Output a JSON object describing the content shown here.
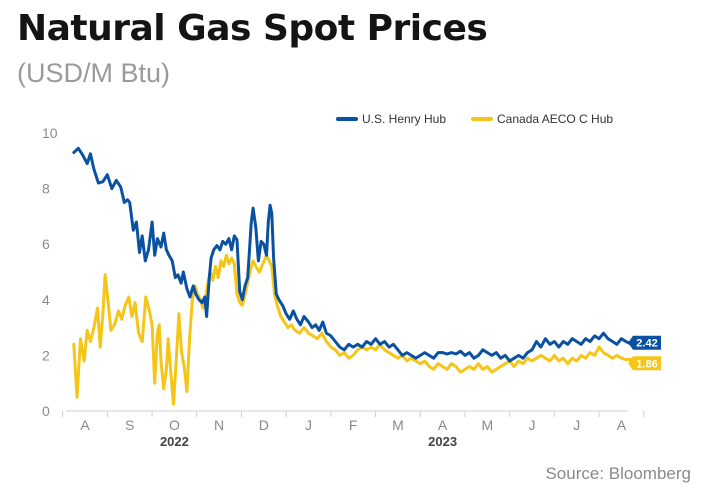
{
  "header": {
    "title": "Natural Gas Spot Prices",
    "subtitle": "(USD/M Btu)"
  },
  "footer": {
    "source": "Source: Bloomberg"
  },
  "colors": {
    "henry": "#0a52a1",
    "aeco": "#f5c518",
    "axis": "#cfcfcf",
    "label_text": "#ffffff",
    "aeco_label_text": "#ffffff"
  },
  "chart_data": {
    "type": "line",
    "x_unit": "months (0 = Aug 1, 2022)",
    "ylim": [
      0,
      10
    ],
    "yticks": [
      0,
      2,
      4,
      6,
      8,
      10
    ],
    "month_ticks": [
      "A",
      "S",
      "O",
      "N",
      "D",
      "J",
      "F",
      "M",
      "A",
      "M",
      "J",
      "J",
      "A"
    ],
    "year_labels": [
      {
        "label": "2022",
        "month_index": 2
      },
      {
        "label": "2023",
        "month_index": 8
      }
    ],
    "legend_position": "top-right",
    "grid": false,
    "end_labels": {
      "henry": "2.42",
      "aeco": "1.86"
    },
    "series": [
      {
        "key": "henry",
        "name": "U.S. Henry Hub",
        "points": [
          [
            -0.25,
            9.3
          ],
          [
            -0.15,
            9.45
          ],
          [
            -0.05,
            9.2
          ],
          [
            0.05,
            8.9
          ],
          [
            0.12,
            9.25
          ],
          [
            0.2,
            8.7
          ],
          [
            0.3,
            8.2
          ],
          [
            0.4,
            8.25
          ],
          [
            0.5,
            8.5
          ],
          [
            0.6,
            8.0
          ],
          [
            0.7,
            8.3
          ],
          [
            0.8,
            8.05
          ],
          [
            0.88,
            7.5
          ],
          [
            0.95,
            7.6
          ],
          [
            1.0,
            7.5
          ],
          [
            1.08,
            6.5
          ],
          [
            1.15,
            6.8
          ],
          [
            1.22,
            5.7
          ],
          [
            1.28,
            6.3
          ],
          [
            1.35,
            5.4
          ],
          [
            1.42,
            5.8
          ],
          [
            1.5,
            6.8
          ],
          [
            1.56,
            5.6
          ],
          [
            1.62,
            6.2
          ],
          [
            1.7,
            5.9
          ],
          [
            1.76,
            6.4
          ],
          [
            1.82,
            5.8
          ],
          [
            1.88,
            5.6
          ],
          [
            1.95,
            5.4
          ],
          [
            2.02,
            4.8
          ],
          [
            2.08,
            4.9
          ],
          [
            2.15,
            4.6
          ],
          [
            2.2,
            5.0
          ],
          [
            2.28,
            4.4
          ],
          [
            2.35,
            4.1
          ],
          [
            2.42,
            4.5
          ],
          [
            2.48,
            4.2
          ],
          [
            2.55,
            4.0
          ],
          [
            2.62,
            3.9
          ],
          [
            2.68,
            4.1
          ],
          [
            2.72,
            3.4
          ],
          [
            2.78,
            4.8
          ],
          [
            2.82,
            5.5
          ],
          [
            2.88,
            5.8
          ],
          [
            2.95,
            5.95
          ],
          [
            3.02,
            5.8
          ],
          [
            3.08,
            6.1
          ],
          [
            3.15,
            6.0
          ],
          [
            3.22,
            6.2
          ],
          [
            3.28,
            5.8
          ],
          [
            3.34,
            6.3
          ],
          [
            3.4,
            6.15
          ],
          [
            3.46,
            4.3
          ],
          [
            3.52,
            4.0
          ],
          [
            3.58,
            4.5
          ],
          [
            3.64,
            4.8
          ],
          [
            3.68,
            5.8
          ],
          [
            3.72,
            6.8
          ],
          [
            3.76,
            7.3
          ],
          [
            3.82,
            6.6
          ],
          [
            3.88,
            5.4
          ],
          [
            3.94,
            6.1
          ],
          [
            4.0,
            6.0
          ],
          [
            4.06,
            5.6
          ],
          [
            4.1,
            6.8
          ],
          [
            4.14,
            7.4
          ],
          [
            4.18,
            7.1
          ],
          [
            4.22,
            5.5
          ],
          [
            4.28,
            4.2
          ],
          [
            4.34,
            4.0
          ],
          [
            4.42,
            3.8
          ],
          [
            4.5,
            3.5
          ],
          [
            4.58,
            3.3
          ],
          [
            4.66,
            3.6
          ],
          [
            4.74,
            3.3
          ],
          [
            4.82,
            3.1
          ],
          [
            4.9,
            3.4
          ],
          [
            5.0,
            3.2
          ],
          [
            5.08,
            3.0
          ],
          [
            5.16,
            3.1
          ],
          [
            5.24,
            2.9
          ],
          [
            5.32,
            3.2
          ],
          [
            5.4,
            2.8
          ],
          [
            5.5,
            2.7
          ],
          [
            5.6,
            2.5
          ],
          [
            5.7,
            2.3
          ],
          [
            5.8,
            2.2
          ],
          [
            5.9,
            2.4
          ],
          [
            6.0,
            2.3
          ],
          [
            6.1,
            2.4
          ],
          [
            6.2,
            2.3
          ],
          [
            6.3,
            2.5
          ],
          [
            6.4,
            2.4
          ],
          [
            6.5,
            2.6
          ],
          [
            6.6,
            2.4
          ],
          [
            6.7,
            2.5
          ],
          [
            6.8,
            2.3
          ],
          [
            6.9,
            2.4
          ],
          [
            7.0,
            2.2
          ],
          [
            7.1,
            2.0
          ],
          [
            7.2,
            2.1
          ],
          [
            7.3,
            2.0
          ],
          [
            7.4,
            1.9
          ],
          [
            7.5,
            2.0
          ],
          [
            7.6,
            2.1
          ],
          [
            7.7,
            2.0
          ],
          [
            7.8,
            1.9
          ],
          [
            7.9,
            2.1
          ],
          [
            8.0,
            2.1
          ],
          [
            8.1,
            2.05
          ],
          [
            8.2,
            2.1
          ],
          [
            8.3,
            2.05
          ],
          [
            8.4,
            2.15
          ],
          [
            8.5,
            2.0
          ],
          [
            8.6,
            2.1
          ],
          [
            8.7,
            1.9
          ],
          [
            8.8,
            2.0
          ],
          [
            8.9,
            2.2
          ],
          [
            9.0,
            2.1
          ],
          [
            9.1,
            2.0
          ],
          [
            9.2,
            2.1
          ],
          [
            9.3,
            1.9
          ],
          [
            9.4,
            2.0
          ],
          [
            9.5,
            1.8
          ],
          [
            9.6,
            1.9
          ],
          [
            9.7,
            2.0
          ],
          [
            9.8,
            1.9
          ],
          [
            9.9,
            2.1
          ],
          [
            10.0,
            2.2
          ],
          [
            10.1,
            2.5
          ],
          [
            10.2,
            2.3
          ],
          [
            10.3,
            2.6
          ],
          [
            10.4,
            2.4
          ],
          [
            10.5,
            2.5
          ],
          [
            10.6,
            2.3
          ],
          [
            10.7,
            2.5
          ],
          [
            10.8,
            2.4
          ],
          [
            10.9,
            2.6
          ],
          [
            11.0,
            2.5
          ],
          [
            11.1,
            2.4
          ],
          [
            11.2,
            2.6
          ],
          [
            11.3,
            2.5
          ],
          [
            11.4,
            2.7
          ],
          [
            11.5,
            2.6
          ],
          [
            11.6,
            2.8
          ],
          [
            11.7,
            2.6
          ],
          [
            11.8,
            2.5
          ],
          [
            11.9,
            2.4
          ],
          [
            12.0,
            2.6
          ],
          [
            12.1,
            2.5
          ],
          [
            12.2,
            2.42
          ]
        ]
      },
      {
        "key": "aeco",
        "name": "Canada AECO C Hub",
        "points": [
          [
            -0.25,
            2.4
          ],
          [
            -0.18,
            0.5
          ],
          [
            -0.1,
            2.6
          ],
          [
            -0.02,
            1.8
          ],
          [
            0.05,
            2.9
          ],
          [
            0.12,
            2.5
          ],
          [
            0.2,
            3.0
          ],
          [
            0.28,
            3.7
          ],
          [
            0.34,
            2.3
          ],
          [
            0.4,
            3.5
          ],
          [
            0.45,
            4.9
          ],
          [
            0.52,
            3.9
          ],
          [
            0.58,
            2.9
          ],
          [
            0.66,
            3.1
          ],
          [
            0.75,
            3.6
          ],
          [
            0.82,
            3.3
          ],
          [
            0.9,
            3.8
          ],
          [
            0.98,
            4.1
          ],
          [
            1.05,
            3.4
          ],
          [
            1.12,
            3.9
          ],
          [
            1.2,
            2.8
          ],
          [
            1.28,
            2.5
          ],
          [
            1.36,
            4.1
          ],
          [
            1.44,
            3.6
          ],
          [
            1.5,
            3.1
          ],
          [
            1.56,
            1.0
          ],
          [
            1.62,
            2.8
          ],
          [
            1.66,
            3.1
          ],
          [
            1.7,
            1.8
          ],
          [
            1.76,
            0.8
          ],
          [
            1.82,
            1.5
          ],
          [
            1.86,
            2.6
          ],
          [
            1.92,
            1.4
          ],
          [
            1.98,
            0.25
          ],
          [
            2.04,
            1.8
          ],
          [
            2.1,
            3.5
          ],
          [
            2.16,
            2.1
          ],
          [
            2.22,
            1.6
          ],
          [
            2.28,
            0.7
          ],
          [
            2.34,
            2.6
          ],
          [
            2.4,
            4.0
          ],
          [
            2.46,
            4.5
          ],
          [
            2.52,
            4.2
          ],
          [
            2.58,
            4.0
          ],
          [
            2.64,
            3.7
          ],
          [
            2.7,
            4.1
          ],
          [
            2.75,
            4.6
          ],
          [
            2.8,
            5.0
          ],
          [
            2.86,
            4.7
          ],
          [
            2.92,
            5.2
          ],
          [
            2.98,
            4.8
          ],
          [
            3.04,
            5.4
          ],
          [
            3.1,
            5.2
          ],
          [
            3.16,
            5.6
          ],
          [
            3.22,
            5.3
          ],
          [
            3.28,
            5.5
          ],
          [
            3.34,
            5.3
          ],
          [
            3.4,
            4.2
          ],
          [
            3.46,
            3.9
          ],
          [
            3.52,
            3.8
          ],
          [
            3.58,
            4.2
          ],
          [
            3.64,
            4.6
          ],
          [
            3.7,
            5.1
          ],
          [
            3.76,
            5.4
          ],
          [
            3.82,
            5.2
          ],
          [
            3.9,
            5.0
          ],
          [
            3.98,
            5.3
          ],
          [
            4.06,
            5.6
          ],
          [
            4.12,
            5.4
          ],
          [
            4.18,
            5.2
          ],
          [
            4.24,
            4.2
          ],
          [
            4.3,
            3.8
          ],
          [
            4.38,
            3.4
          ],
          [
            4.46,
            3.2
          ],
          [
            4.54,
            3.0
          ],
          [
            4.62,
            3.1
          ],
          [
            4.7,
            2.9
          ],
          [
            4.8,
            2.8
          ],
          [
            4.9,
            3.0
          ],
          [
            5.0,
            2.8
          ],
          [
            5.1,
            2.7
          ],
          [
            5.2,
            2.6
          ],
          [
            5.3,
            2.8
          ],
          [
            5.4,
            2.5
          ],
          [
            5.5,
            2.3
          ],
          [
            5.6,
            2.2
          ],
          [
            5.7,
            2.0
          ],
          [
            5.8,
            2.1
          ],
          [
            5.9,
            1.9
          ],
          [
            6.0,
            2.0
          ],
          [
            6.1,
            2.2
          ],
          [
            6.2,
            2.3
          ],
          [
            6.3,
            2.2
          ],
          [
            6.4,
            2.3
          ],
          [
            6.5,
            2.2
          ],
          [
            6.6,
            2.4
          ],
          [
            6.7,
            2.2
          ],
          [
            6.8,
            2.1
          ],
          [
            6.9,
            2.0
          ],
          [
            7.0,
            1.9
          ],
          [
            7.1,
            2.0
          ],
          [
            7.2,
            1.8
          ],
          [
            7.3,
            1.9
          ],
          [
            7.4,
            1.8
          ],
          [
            7.5,
            1.7
          ],
          [
            7.6,
            1.8
          ],
          [
            7.7,
            1.6
          ],
          [
            7.8,
            1.5
          ],
          [
            7.9,
            1.7
          ],
          [
            8.0,
            1.6
          ],
          [
            8.1,
            1.5
          ],
          [
            8.2,
            1.7
          ],
          [
            8.3,
            1.6
          ],
          [
            8.4,
            1.4
          ],
          [
            8.5,
            1.5
          ],
          [
            8.6,
            1.6
          ],
          [
            8.7,
            1.5
          ],
          [
            8.8,
            1.7
          ],
          [
            8.9,
            1.5
          ],
          [
            9.0,
            1.6
          ],
          [
            9.1,
            1.4
          ],
          [
            9.2,
            1.5
          ],
          [
            9.3,
            1.6
          ],
          [
            9.4,
            1.7
          ],
          [
            9.5,
            1.8
          ],
          [
            9.6,
            1.6
          ],
          [
            9.7,
            1.8
          ],
          [
            9.8,
            1.7
          ],
          [
            9.9,
            1.9
          ],
          [
            10.0,
            1.8
          ],
          [
            10.1,
            1.9
          ],
          [
            10.2,
            2.0
          ],
          [
            10.3,
            1.9
          ],
          [
            10.4,
            1.8
          ],
          [
            10.5,
            2.0
          ],
          [
            10.6,
            1.8
          ],
          [
            10.7,
            1.9
          ],
          [
            10.8,
            1.7
          ],
          [
            10.9,
            1.9
          ],
          [
            11.0,
            1.8
          ],
          [
            11.1,
            2.0
          ],
          [
            11.2,
            1.9
          ],
          [
            11.3,
            2.1
          ],
          [
            11.4,
            2.0
          ],
          [
            11.5,
            2.3
          ],
          [
            11.6,
            2.1
          ],
          [
            11.7,
            2.0
          ],
          [
            11.8,
            1.9
          ],
          [
            11.9,
            2.0
          ],
          [
            12.0,
            1.9
          ],
          [
            12.1,
            1.85
          ],
          [
            12.2,
            1.86
          ]
        ]
      }
    ]
  }
}
